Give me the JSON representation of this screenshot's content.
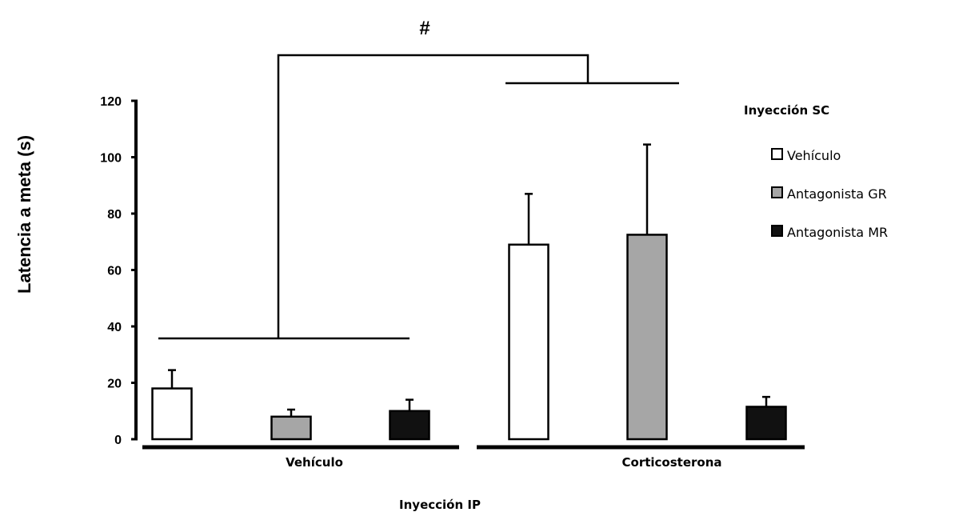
{
  "chart_data": {
    "type": "bar",
    "title": "",
    "ylabel": "Latencia a meta (s)",
    "xlabel": "Inyección IP",
    "ylim": [
      0,
      120
    ],
    "yticks": [
      0,
      20,
      40,
      60,
      80,
      100,
      120
    ],
    "categories": [
      "Vehículo",
      "Corticosterona"
    ],
    "legend_title": "Inyección SC",
    "legend_position": "right",
    "series": [
      {
        "name": "Vehículo",
        "color": "#ffffff",
        "values": [
          18,
          69
        ],
        "errors": [
          6.5,
          18
        ]
      },
      {
        "name": "Antagonista GR",
        "color": "#a6a6a6",
        "values": [
          8,
          72.5
        ],
        "errors": [
          2.5,
          32
        ]
      },
      {
        "name": "Antagonista MR",
        "color": "#111111",
        "values": [
          10,
          11.5
        ],
        "errors": [
          4,
          3.5
        ]
      }
    ],
    "annotation": "#"
  }
}
